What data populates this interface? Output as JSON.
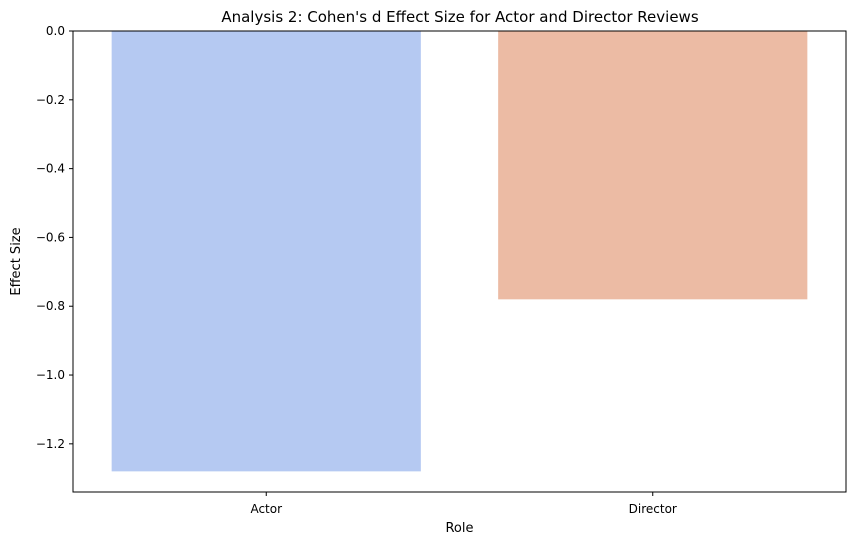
{
  "chart_data": {
    "type": "bar",
    "title": "Analysis 2: Cohen's d Effect Size for Actor and Director Reviews",
    "xlabel": "Role",
    "ylabel": "Effect Size",
    "categories": [
      "Actor",
      "Director"
    ],
    "values": [
      -1.28,
      -0.78
    ],
    "colors": [
      "#b5c9f2",
      "#ecbba4"
    ],
    "ylim": [
      -1.34,
      0.0
    ],
    "yticks": [
      0.0,
      -0.2,
      -0.4,
      -0.6,
      -0.8,
      -1.0,
      -1.2
    ],
    "ytick_labels": [
      "0.0",
      "−0.2",
      "−0.4",
      "−0.6",
      "−0.8",
      "−1.0",
      "−1.2"
    ],
    "grid": false,
    "legend": "none"
  }
}
